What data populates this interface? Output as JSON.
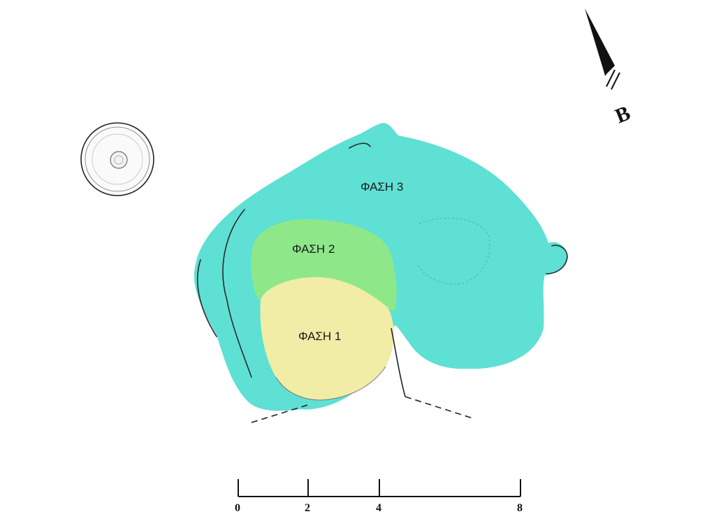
{
  "phases": [
    {
      "id": "phase-3",
      "label": "ΦΑΣΗ 3",
      "color": "#5fe0d4"
    },
    {
      "id": "phase-2",
      "label": "ΦΑΣΗ 2",
      "color": "#8ee88a"
    },
    {
      "id": "phase-1",
      "label": "ΦΑΣΗ 1",
      "color": "#f1eca6"
    }
  ],
  "north_arrow": {
    "letter": "B"
  },
  "scale_bar": {
    "ticks": [
      "0",
      "2",
      "4",
      "8"
    ]
  },
  "colors": {
    "outline": "#333333",
    "background": "#ffffff"
  }
}
